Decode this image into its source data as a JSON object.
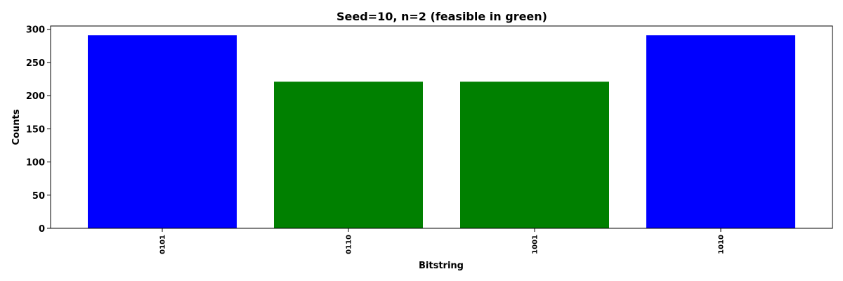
{
  "chart_data": {
    "type": "bar",
    "title": "Seed=10, n=2 (feasible in green)",
    "xlabel": "Bitstring",
    "ylabel": "Counts",
    "categories": [
      "0101",
      "0110",
      "1001",
      "1010"
    ],
    "values": [
      291,
      221,
      221,
      291
    ],
    "bar_colors": [
      "#0000ff",
      "#008000",
      "#008000",
      "#0000ff"
    ],
    "ylim": [
      0,
      305
    ],
    "yticks": [
      0,
      50,
      100,
      150,
      200,
      250,
      300
    ],
    "grid": false,
    "legend": "none"
  }
}
